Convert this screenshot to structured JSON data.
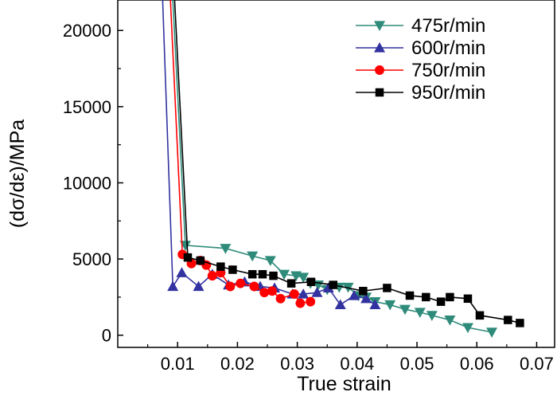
{
  "chart_data": {
    "type": "line",
    "xlabel": "True strain",
    "ylabel": "(dσ/dε)/MPa",
    "xlim": [
      0.0,
      0.073
    ],
    "ylim": [
      -800,
      22000
    ],
    "xticks": [
      0.01,
      0.02,
      0.03,
      0.04,
      0.05,
      0.06,
      0.07
    ],
    "xtick_labels": [
      "0.01",
      "0.02",
      "0.03",
      "0.04",
      "0.05",
      "0.06",
      "0.07"
    ],
    "yticks": [
      0,
      5000,
      10000,
      15000,
      20000
    ],
    "ytick_labels": [
      "0",
      "5000",
      "10000",
      "15000",
      "20000"
    ],
    "legend_position": "top-right",
    "series": [
      {
        "name": "475r/min",
        "color": "#2e8b7a",
        "marker": "triangle-down",
        "points": [
          [
            0.0092,
            22000
          ],
          [
            0.0113,
            5900
          ],
          [
            0.018,
            5700
          ],
          [
            0.0225,
            5200
          ],
          [
            0.0255,
            4900
          ],
          [
            0.0278,
            4000
          ],
          [
            0.0298,
            3900
          ],
          [
            0.031,
            3800
          ],
          [
            0.0322,
            3400
          ],
          [
            0.0335,
            3300
          ],
          [
            0.035,
            3000
          ],
          [
            0.037,
            3150
          ],
          [
            0.0385,
            3150
          ],
          [
            0.0402,
            2600
          ],
          [
            0.0415,
            2500
          ],
          [
            0.043,
            2200
          ],
          [
            0.0455,
            2000
          ],
          [
            0.048,
            1700
          ],
          [
            0.0505,
            1500
          ],
          [
            0.0525,
            1300
          ],
          [
            0.0555,
            1000
          ],
          [
            0.0585,
            500
          ],
          [
            0.0625,
            200
          ]
        ]
      },
      {
        "name": "600r/min",
        "color": "#3232a0",
        "marker": "triangle-up",
        "points": [
          [
            0.0075,
            22000
          ],
          [
            0.0092,
            3200
          ],
          [
            0.0107,
            4100
          ],
          [
            0.0135,
            3200
          ],
          [
            0.0158,
            4000
          ],
          [
            0.0185,
            3300
          ],
          [
            0.0212,
            3500
          ],
          [
            0.0238,
            3200
          ],
          [
            0.0262,
            3100
          ],
          [
            0.0292,
            2700
          ],
          [
            0.031,
            2700
          ],
          [
            0.0333,
            2800
          ],
          [
            0.0352,
            3100
          ],
          [
            0.0372,
            2000
          ],
          [
            0.0395,
            2600
          ],
          [
            0.0415,
            2400
          ],
          [
            0.043,
            2000
          ]
        ]
      },
      {
        "name": "750r/min",
        "color": "#ff0000",
        "marker": "circle",
        "points": [
          [
            0.0088,
            22000
          ],
          [
            0.0108,
            5300
          ],
          [
            0.0123,
            4700
          ],
          [
            0.0138,
            4900
          ],
          [
            0.0148,
            4600
          ],
          [
            0.0158,
            3900
          ],
          [
            0.0172,
            4100
          ],
          [
            0.0188,
            3200
          ],
          [
            0.0205,
            3400
          ],
          [
            0.0228,
            3200
          ],
          [
            0.0245,
            2800
          ],
          [
            0.0258,
            2900
          ],
          [
            0.0272,
            2400
          ],
          [
            0.0295,
            2700
          ],
          [
            0.0305,
            2100
          ],
          [
            0.0322,
            2200
          ]
        ]
      },
      {
        "name": "950r/min",
        "color": "#000000",
        "marker": "square",
        "points": [
          [
            0.0095,
            22000
          ],
          [
            0.0117,
            5100
          ],
          [
            0.0138,
            4900
          ],
          [
            0.0172,
            4500
          ],
          [
            0.0192,
            4300
          ],
          [
            0.0225,
            4000
          ],
          [
            0.0242,
            4000
          ],
          [
            0.026,
            3900
          ],
          [
            0.029,
            3400
          ],
          [
            0.0323,
            3500
          ],
          [
            0.036,
            3300
          ],
          [
            0.041,
            2900
          ],
          [
            0.045,
            3100
          ],
          [
            0.0488,
            2600
          ],
          [
            0.0515,
            2500
          ],
          [
            0.054,
            2200
          ],
          [
            0.0555,
            2500
          ],
          [
            0.0585,
            2400
          ],
          [
            0.0605,
            1300
          ],
          [
            0.0652,
            1000
          ],
          [
            0.0672,
            800
          ]
        ]
      }
    ]
  }
}
